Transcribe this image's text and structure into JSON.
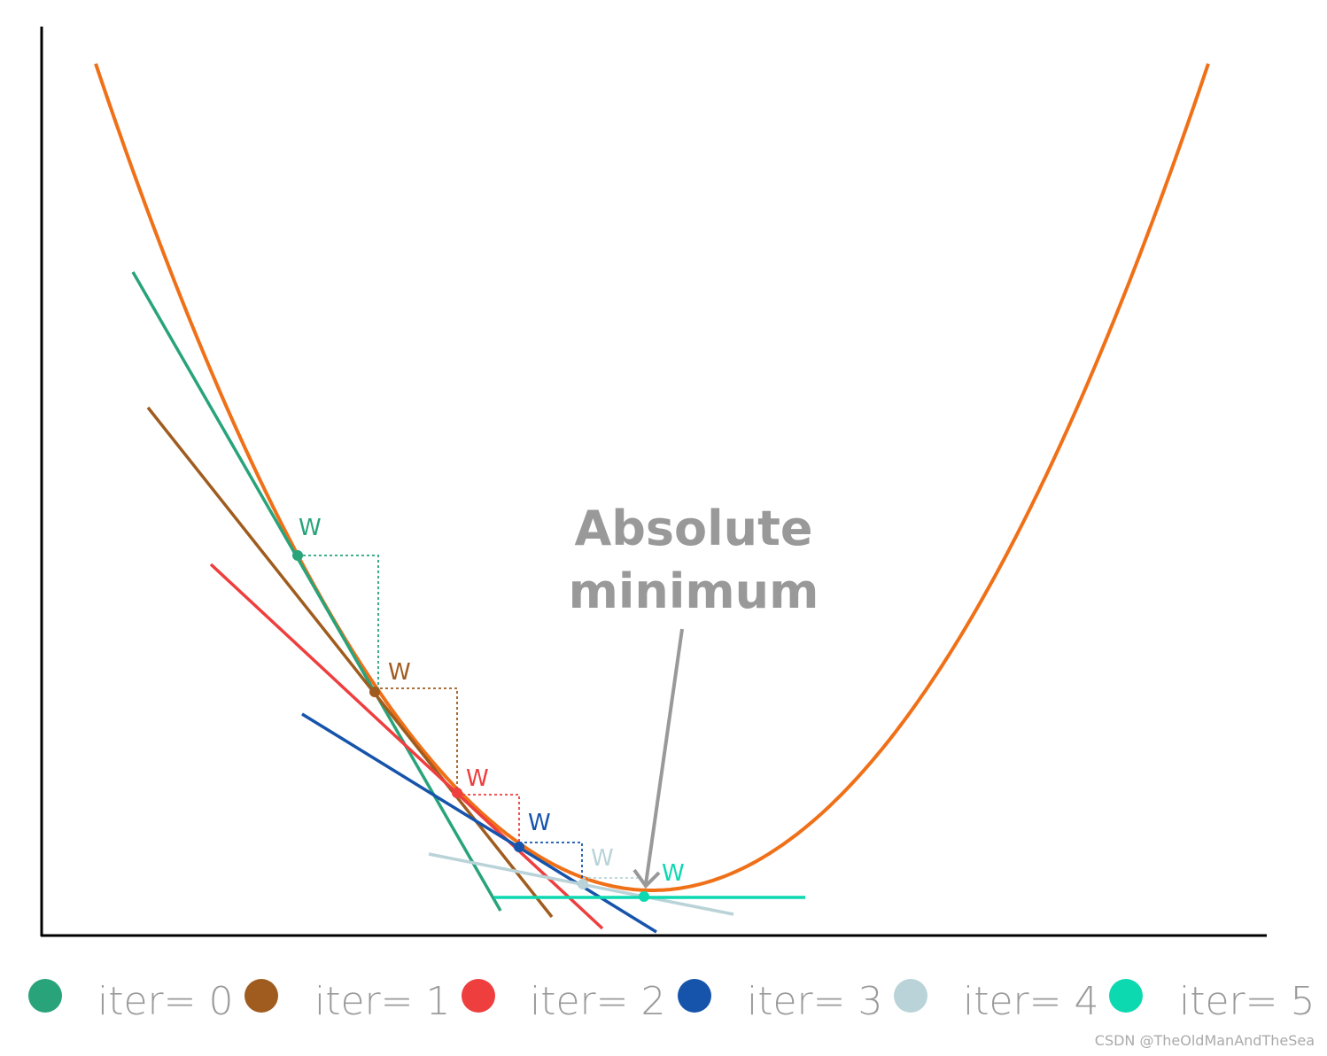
{
  "annotation": [
    "Absolute",
    "minimum"
  ],
  "points": [
    {
      "label": "W"
    },
    {
      "label": "W"
    },
    {
      "label": "W"
    },
    {
      "label": "W"
    },
    {
      "label": "W"
    },
    {
      "label": "W"
    }
  ],
  "legend": [
    "iter= 0",
    "iter= 1",
    "iter= 2",
    "iter= 3",
    "iter= 4",
    "iter= 5"
  ],
  "watermark": "CSDN @TheOldManAndTheSea"
}
